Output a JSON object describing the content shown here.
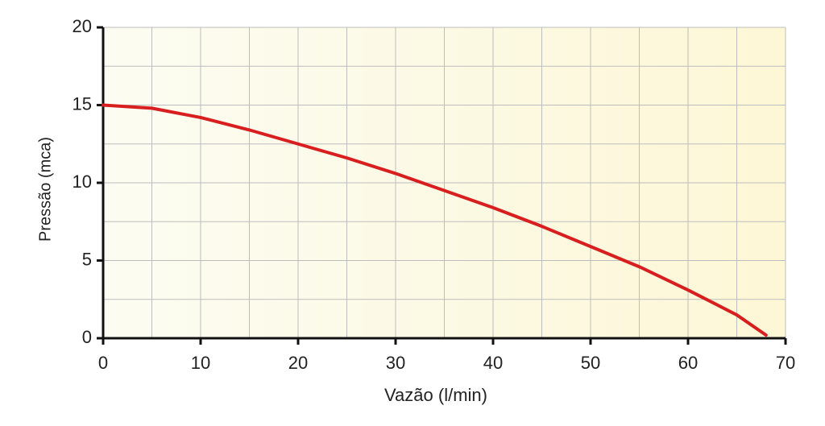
{
  "chart_data": {
    "type": "line",
    "x_label": "Vazão (l/min)",
    "y_label": "Pressão (mca)",
    "x": [
      0,
      5,
      10,
      15,
      20,
      25,
      30,
      35,
      40,
      45,
      50,
      55,
      60,
      65,
      68
    ],
    "series": [
      {
        "color": "#d81e1e",
        "values": [
          15,
          14.8,
          14.2,
          13.4,
          12.5,
          11.6,
          10.6,
          9.5,
          8.4,
          7.2,
          5.9,
          4.6,
          3.1,
          1.5,
          0.2
        ]
      }
    ],
    "xlim": [
      0,
      70
    ],
    "xticks": [
      0,
      10,
      20,
      30,
      40,
      50,
      60,
      70
    ],
    "ylim": [
      0,
      20
    ],
    "yticks": [
      0,
      5,
      10,
      15,
      20
    ],
    "grid": true
  }
}
